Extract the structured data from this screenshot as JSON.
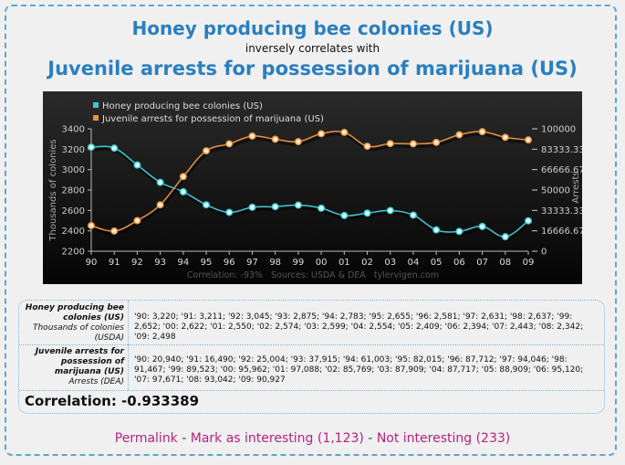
{
  "header": {
    "title1": "Honey producing bee colonies (US)",
    "subtitle": "inversely correlates with",
    "title2": "Juvenile arrests for possession of marijuana (US)"
  },
  "chart_data": {
    "type": "line",
    "x": [
      "90",
      "91",
      "92",
      "93",
      "94",
      "95",
      "96",
      "97",
      "98",
      "99",
      "00",
      "01",
      "02",
      "03",
      "04",
      "05",
      "06",
      "07",
      "08",
      "09"
    ],
    "series": [
      {
        "name": "Honey producing bee colonies (US)",
        "axis": "left",
        "color": "#3ec8d4",
        "values": [
          3220,
          3211,
          3045,
          2875,
          2783,
          2655,
          2581,
          2631,
          2637,
          2652,
          2622,
          2550,
          2574,
          2599,
          2554,
          2409,
          2394,
          2443,
          2342,
          2498
        ]
      },
      {
        "name": "Juvenile arrests for possession of marijuana (US)",
        "axis": "right",
        "color": "#e8923a",
        "values": [
          20940,
          16490,
          25004,
          37915,
          61003,
          82015,
          87712,
          94046,
          91467,
          89523,
          95962,
          97088,
          85769,
          87909,
          87717,
          88909,
          95120,
          97671,
          93042,
          90927
        ]
      }
    ],
    "ylabel_left": "Thousands of colonies",
    "ylabel_right": "Arrests",
    "yticks_left": [
      "2200",
      "2400",
      "2600",
      "2800",
      "3000",
      "3200",
      "3400"
    ],
    "ylim_left": [
      2200,
      3400
    ],
    "yticks_right": [
      "0",
      "16666.67",
      "33333.33",
      "50000",
      "66666.67",
      "83333.33",
      "100000"
    ],
    "ylim_right": [
      0,
      100000
    ],
    "footer": "Correlation: -93%   Sources: USDA & DEA   tylervigen.com",
    "legend_position": "top-left"
  },
  "table": {
    "row1": {
      "label_bold": "Honey producing bee colonies (US)",
      "label_unit": "Thousands of colonies (USDA)",
      "values": "'90: 3,220; '91: 3,211; '92: 3,045; '93: 2,875; '94: 2,783; '95: 2,655; '96: 2,581; '97: 2,631; '98: 2,637; '99: 2,652; '00: 2,622; '01: 2,550; '02: 2,574; '03: 2,599; '04: 2,554; '05: 2,409; '06: 2,394; '07: 2,443; '08: 2,342; '09: 2,498"
    },
    "row2": {
      "label_bold": "Juvenile arrests for possession of marijuana (US)",
      "label_unit": "Arrests (DEA)",
      "values": "'90: 20,940; '91: 16,490; '92: 25,004; '93: 37,915; '94: 61,003; '95: 82,015; '96: 87,712; '97: 94,046; '98: 91,467; '99: 89,523; '00: 95,962; '01: 97,088; '02: 85,769; '03: 87,909; '04: 87,717; '05: 88,909; '06: 95,120; '07: 97,671; '08: 93,042; '09: 90,927"
    },
    "correlation": "Correlation: -0.933389"
  },
  "links": {
    "permalink": "Permalink",
    "sep": " - ",
    "mark_interesting": "Mark as interesting (1,123)",
    "not_interesting": "Not interesting (233)"
  }
}
